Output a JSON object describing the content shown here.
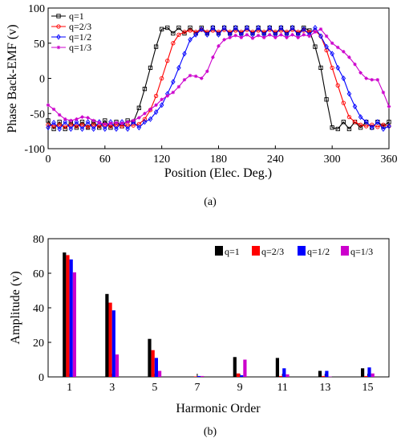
{
  "chart_data": [
    {
      "type": "line",
      "caption": "(a)",
      "ylabel": "Phase Back-EMF (v)",
      "xlabel": "Position (Elec. Deg.)",
      "xlim": [
        0,
        360
      ],
      "ylim": [
        -100,
        100
      ],
      "xticks": [
        "0",
        "60",
        "120",
        "180",
        "240",
        "300",
        "360"
      ],
      "yticks": [
        "-100",
        "-50",
        "0",
        "50",
        "100"
      ],
      "grid": false,
      "legend_position": "top-left",
      "series": [
        {
          "name": "q=1",
          "color": "#000000",
          "marker": "square",
          "points": [
            [
              0,
              -60
            ],
            [
              6,
              -72
            ],
            [
              12,
              -62
            ],
            [
              18,
              -72
            ],
            [
              24,
              -62
            ],
            [
              30,
              -70
            ],
            [
              36,
              -62
            ],
            [
              42,
              -70
            ],
            [
              48,
              -62
            ],
            [
              54,
              -70
            ],
            [
              60,
              -60
            ],
            [
              66,
              -70
            ],
            [
              72,
              -62
            ],
            [
              78,
              -68
            ],
            [
              84,
              -60
            ],
            [
              90,
              -62
            ],
            [
              96,
              -42
            ],
            [
              102,
              -15
            ],
            [
              108,
              15
            ],
            [
              114,
              45
            ],
            [
              120,
              70
            ],
            [
              126,
              72
            ],
            [
              132,
              64
            ],
            [
              138,
              72
            ],
            [
              144,
              64
            ],
            [
              150,
              72
            ],
            [
              156,
              64
            ],
            [
              162,
              72
            ],
            [
              168,
              64
            ],
            [
              174,
              72
            ],
            [
              180,
              64
            ],
            [
              186,
              72
            ],
            [
              192,
              64
            ],
            [
              198,
              72
            ],
            [
              204,
              64
            ],
            [
              210,
              72
            ],
            [
              216,
              64
            ],
            [
              222,
              72
            ],
            [
              228,
              64
            ],
            [
              234,
              72
            ],
            [
              240,
              64
            ],
            [
              246,
              72
            ],
            [
              252,
              64
            ],
            [
              258,
              72
            ],
            [
              264,
              64
            ],
            [
              270,
              72
            ],
            [
              276,
              68
            ],
            [
              282,
              45
            ],
            [
              288,
              15
            ],
            [
              294,
              -30
            ],
            [
              300,
              -70
            ],
            [
              306,
              -72
            ],
            [
              312,
              -62
            ],
            [
              318,
              -72
            ],
            [
              324,
              -62
            ],
            [
              330,
              -70
            ],
            [
              336,
              -62
            ],
            [
              342,
              -70
            ],
            [
              348,
              -62
            ],
            [
              354,
              -68
            ],
            [
              360,
              -62
            ]
          ]
        },
        {
          "name": "q=2/3",
          "color": "#ff0000",
          "marker": "circle",
          "points": [
            [
              0,
              -66
            ],
            [
              6,
              -68
            ],
            [
              12,
              -66
            ],
            [
              18,
              -69
            ],
            [
              24,
              -66
            ],
            [
              30,
              -68
            ],
            [
              36,
              -66
            ],
            [
              42,
              -69
            ],
            [
              48,
              -66
            ],
            [
              54,
              -68
            ],
            [
              60,
              -66
            ],
            [
              66,
              -68
            ],
            [
              72,
              -66
            ],
            [
              78,
              -68
            ],
            [
              84,
              -66
            ],
            [
              90,
              -67
            ],
            [
              96,
              -65
            ],
            [
              102,
              -58
            ],
            [
              108,
              -45
            ],
            [
              114,
              -25
            ],
            [
              120,
              0
            ],
            [
              126,
              25
            ],
            [
              132,
              50
            ],
            [
              138,
              62
            ],
            [
              144,
              66
            ],
            [
              150,
              68
            ],
            [
              156,
              66
            ],
            [
              162,
              69
            ],
            [
              168,
              66
            ],
            [
              174,
              68
            ],
            [
              180,
              66
            ],
            [
              186,
              69
            ],
            [
              192,
              66
            ],
            [
              198,
              68
            ],
            [
              204,
              66
            ],
            [
              210,
              69
            ],
            [
              216,
              66
            ],
            [
              222,
              68
            ],
            [
              228,
              66
            ],
            [
              234,
              69
            ],
            [
              240,
              66
            ],
            [
              246,
              68
            ],
            [
              252,
              66
            ],
            [
              258,
              69
            ],
            [
              264,
              66
            ],
            [
              270,
              68
            ],
            [
              276,
              66
            ],
            [
              282,
              68
            ],
            [
              288,
              60
            ],
            [
              294,
              40
            ],
            [
              300,
              15
            ],
            [
              306,
              -10
            ],
            [
              312,
              -35
            ],
            [
              318,
              -55
            ],
            [
              324,
              -62
            ],
            [
              330,
              -66
            ],
            [
              336,
              -68
            ],
            [
              342,
              -66
            ],
            [
              348,
              -69
            ],
            [
              354,
              -66
            ],
            [
              360,
              -68
            ]
          ]
        },
        {
          "name": "q=1/2",
          "color": "#0000ff",
          "marker": "diamond",
          "points": [
            [
              0,
              -70
            ],
            [
              6,
              -63
            ],
            [
              12,
              -72
            ],
            [
              18,
              -62
            ],
            [
              24,
              -72
            ],
            [
              30,
              -62
            ],
            [
              36,
              -72
            ],
            [
              42,
              -62
            ],
            [
              48,
              -72
            ],
            [
              54,
              -62
            ],
            [
              60,
              -72
            ],
            [
              66,
              -62
            ],
            [
              72,
              -72
            ],
            [
              78,
              -62
            ],
            [
              84,
              -72
            ],
            [
              90,
              -62
            ],
            [
              96,
              -70
            ],
            [
              102,
              -62
            ],
            [
              108,
              -58
            ],
            [
              114,
              -48
            ],
            [
              120,
              -38
            ],
            [
              126,
              -22
            ],
            [
              132,
              -5
            ],
            [
              138,
              15
            ],
            [
              144,
              35
            ],
            [
              150,
              55
            ],
            [
              156,
              62
            ],
            [
              162,
              70
            ],
            [
              168,
              62
            ],
            [
              174,
              72
            ],
            [
              180,
              62
            ],
            [
              186,
              72
            ],
            [
              192,
              62
            ],
            [
              198,
              72
            ],
            [
              204,
              62
            ],
            [
              210,
              72
            ],
            [
              216,
              62
            ],
            [
              222,
              72
            ],
            [
              228,
              62
            ],
            [
              234,
              72
            ],
            [
              240,
              62
            ],
            [
              246,
              72
            ],
            [
              252,
              62
            ],
            [
              258,
              72
            ],
            [
              264,
              62
            ],
            [
              270,
              70
            ],
            [
              276,
              62
            ],
            [
              282,
              72
            ],
            [
              288,
              60
            ],
            [
              294,
              45
            ],
            [
              300,
              35
            ],
            [
              306,
              15
            ],
            [
              312,
              0
            ],
            [
              318,
              -22
            ],
            [
              324,
              -40
            ],
            [
              330,
              -55
            ],
            [
              336,
              -62
            ],
            [
              342,
              -70
            ],
            [
              348,
              -62
            ],
            [
              354,
              -72
            ],
            [
              360,
              -68
            ]
          ]
        },
        {
          "name": "q=1/3",
          "color": "#cc00cc",
          "marker": "star",
          "points": [
            [
              0,
              -38
            ],
            [
              6,
              -44
            ],
            [
              12,
              -52
            ],
            [
              18,
              -58
            ],
            [
              24,
              -60
            ],
            [
              30,
              -58
            ],
            [
              36,
              -55
            ],
            [
              42,
              -56
            ],
            [
              48,
              -60
            ],
            [
              54,
              -63
            ],
            [
              60,
              -65
            ],
            [
              66,
              -64
            ],
            [
              72,
              -63
            ],
            [
              78,
              -64
            ],
            [
              84,
              -62
            ],
            [
              90,
              -60
            ],
            [
              96,
              -56
            ],
            [
              102,
              -50
            ],
            [
              108,
              -44
            ],
            [
              114,
              -38
            ],
            [
              120,
              -30
            ],
            [
              126,
              -25
            ],
            [
              132,
              -20
            ],
            [
              138,
              -12
            ],
            [
              144,
              -2
            ],
            [
              150,
              4
            ],
            [
              156,
              3
            ],
            [
              162,
              0
            ],
            [
              168,
              10
            ],
            [
              174,
              30
            ],
            [
              180,
              46
            ],
            [
              186,
              55
            ],
            [
              192,
              58
            ],
            [
              198,
              61
            ],
            [
              204,
              58
            ],
            [
              210,
              62
            ],
            [
              216,
              57
            ],
            [
              222,
              61
            ],
            [
              228,
              58
            ],
            [
              234,
              62
            ],
            [
              240,
              58
            ],
            [
              246,
              62
            ],
            [
              252,
              58
            ],
            [
              258,
              62
            ],
            [
              264,
              58
            ],
            [
              270,
              62
            ],
            [
              276,
              60
            ],
            [
              282,
              66
            ],
            [
              288,
              70
            ],
            [
              294,
              60
            ],
            [
              300,
              50
            ],
            [
              306,
              44
            ],
            [
              312,
              38
            ],
            [
              318,
              30
            ],
            [
              324,
              20
            ],
            [
              330,
              8
            ],
            [
              336,
              0
            ],
            [
              342,
              -2
            ],
            [
              348,
              -2
            ],
            [
              354,
              -20
            ],
            [
              360,
              -40
            ]
          ]
        }
      ]
    },
    {
      "type": "bar",
      "caption": "(b)",
      "ylabel": "Amplitude (v)",
      "xlabel": "Harmonic Order",
      "categories": [
        "1",
        "3",
        "5",
        "7",
        "9",
        "11",
        "13",
        "15"
      ],
      "ylim": [
        0,
        80
      ],
      "yticks": [
        "0",
        "20",
        "40",
        "60",
        "80"
      ],
      "grid": false,
      "legend_position": "top-right",
      "series": [
        {
          "name": "q=1",
          "color": "#000000",
          "values": [
            72,
            48,
            22,
            0.2,
            11.5,
            11,
            3.5,
            5
          ]
        },
        {
          "name": "q=2/3",
          "color": "#ff0000",
          "values": [
            70.5,
            43,
            15.5,
            0.3,
            2,
            0.5,
            0.5,
            0.5
          ]
        },
        {
          "name": "q=1/2",
          "color": "#0000ff",
          "values": [
            68,
            38.5,
            11,
            0.5,
            1,
            5,
            3.5,
            5.5
          ]
        },
        {
          "name": "q=1/3",
          "color": "#cc00cc",
          "values": [
            60.5,
            13,
            3.5,
            0.5,
            10,
            1.5,
            0.2,
            2
          ]
        }
      ]
    }
  ]
}
